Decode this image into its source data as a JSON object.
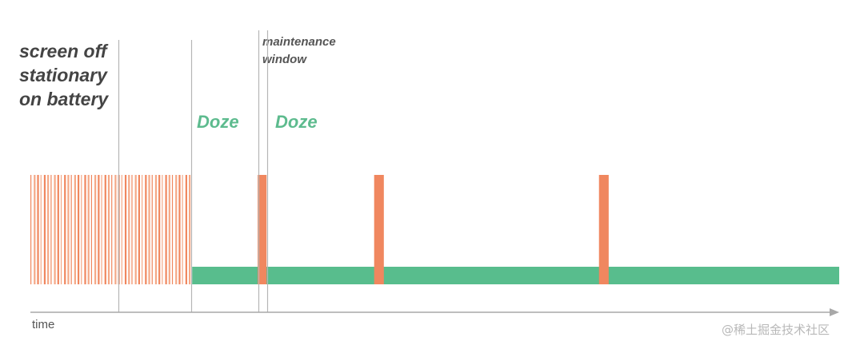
{
  "conditions": {
    "line1": "screen off",
    "line2": "stationary",
    "line3": "on battery"
  },
  "maintenance": {
    "line1": "maintenance",
    "line2": "window"
  },
  "doze_labels": [
    "Doze",
    "Doze"
  ],
  "axis": {
    "label": "time"
  },
  "watermark": "@稀土掘金技术社区",
  "colors": {
    "activity": "#f0875f",
    "activity_light": "#f5a886",
    "doze": "#58bd8d",
    "divider": "#b5b5b5",
    "axis": "#a8a8a8",
    "doze_text": "#5dbb8e",
    "text": "#444444"
  },
  "timeline": {
    "active_start": 0.0,
    "active_end": 0.2,
    "stripe_count": 48,
    "maintenance_windows": [
      {
        "start": 0.281,
        "end": 0.292
      },
      {
        "start": 0.425,
        "end": 0.437
      },
      {
        "start": 0.703,
        "end": 0.715
      }
    ],
    "doze_start": 0.2,
    "doze_end": 1.0,
    "dividers": [
      0.109,
      0.199,
      0.282,
      0.293
    ]
  }
}
